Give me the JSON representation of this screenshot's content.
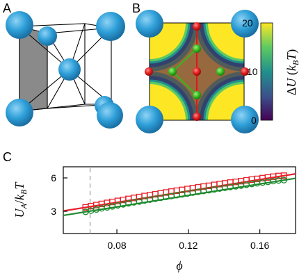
{
  "panels": {
    "a": {
      "label": "A"
    },
    "b": {
      "label": "B",
      "colorbar": {
        "label": "ΔU (k_BT)",
        "label_parts": {
          "delta": "Δ",
          "var": "U",
          "open": " (",
          "k": "k",
          "sub": "B",
          "T": "T",
          "close": ")"
        },
        "ticks": [
          "20",
          "10",
          "0"
        ],
        "colors": [
          "#440154",
          "#3b528b",
          "#21918c",
          "#5ec962",
          "#fde725"
        ]
      }
    },
    "c": {
      "label": "C"
    }
  },
  "chart_data": {
    "type": "line",
    "xlabel": "ϕ",
    "ylabel": "U_A/k_BT",
    "xlim": [
      0.05,
      0.18
    ],
    "ylim": [
      1.0,
      7.0
    ],
    "xticks": [
      0.08,
      0.12,
      0.16
    ],
    "xtick_labels": [
      "0.08",
      "0.12",
      "0.16"
    ],
    "yticks": [
      3,
      6
    ],
    "ytick_labels": [
      "3",
      "6"
    ],
    "vline_x": 0.065,
    "series": [
      {
        "marker": "square",
        "color": "#e8212a",
        "x": [
          0.0625,
          0.0655,
          0.0685,
          0.0715,
          0.0745,
          0.0775,
          0.0805,
          0.0835,
          0.0865,
          0.0895,
          0.0925,
          0.0955,
          0.0985,
          0.1015,
          0.1045,
          0.1075,
          0.1105,
          0.1135,
          0.1165,
          0.1195,
          0.1225,
          0.1255,
          0.1285,
          0.1315,
          0.1345,
          0.1375,
          0.1405,
          0.1435,
          0.1465,
          0.1495,
          0.1525,
          0.1555,
          0.1585,
          0.1615,
          0.1645,
          0.1675,
          0.1705,
          0.1735
        ],
        "y": [
          3.35,
          3.46,
          3.56,
          3.66,
          3.75,
          3.84,
          3.93,
          4.02,
          4.11,
          4.2,
          4.28,
          4.37,
          4.45,
          4.53,
          4.61,
          4.69,
          4.77,
          4.85,
          4.92,
          5.0,
          5.08,
          5.15,
          5.22,
          5.29,
          5.37,
          5.44,
          5.51,
          5.58,
          5.64,
          5.71,
          5.78,
          5.85,
          5.91,
          5.98,
          6.04,
          6.11,
          6.17,
          6.2
        ]
      },
      {
        "marker": "circle",
        "color": "#1d8a2e",
        "x": [
          0.0625,
          0.0655,
          0.0685,
          0.0715,
          0.0745,
          0.0775,
          0.0805,
          0.0835,
          0.0865,
          0.0895,
          0.0925,
          0.0955,
          0.0985,
          0.1015,
          0.1045,
          0.1075,
          0.1105,
          0.1135,
          0.1165,
          0.1195,
          0.1225,
          0.1255,
          0.1285,
          0.1315,
          0.1345,
          0.1375,
          0.1405,
          0.1435,
          0.1465,
          0.1495,
          0.1525,
          0.1555,
          0.1585,
          0.1615,
          0.1645,
          0.1675,
          0.1705,
          0.1735
        ],
        "y": [
          2.95,
          3.06,
          3.16,
          3.26,
          3.35,
          3.44,
          3.53,
          3.62,
          3.71,
          3.8,
          3.88,
          3.97,
          4.05,
          4.13,
          4.21,
          4.29,
          4.37,
          4.45,
          4.52,
          4.6,
          4.68,
          4.75,
          4.82,
          4.89,
          4.97,
          5.04,
          5.11,
          5.18,
          5.24,
          5.31,
          5.38,
          5.45,
          5.51,
          5.58,
          5.64,
          5.71,
          5.77,
          5.8
        ]
      }
    ]
  }
}
